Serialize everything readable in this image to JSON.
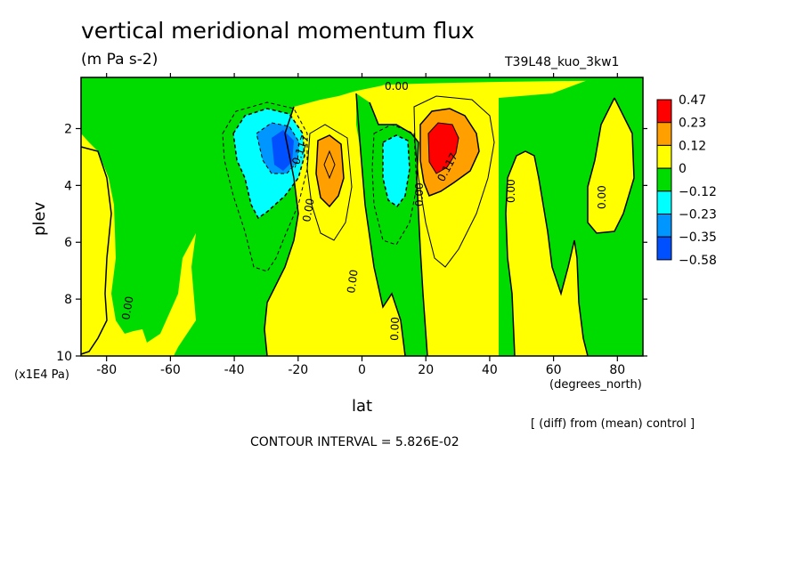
{
  "chart_data": {
    "type": "heatmap",
    "title": "vertical meridional momentum flux",
    "units": "(m Pa s-2)",
    "run_label": "T39L48_kuo_3kw1",
    "xlabel": "lat",
    "x_units": "(degrees_north)",
    "ylabel": "plev",
    "y_scale": "(x1E4 Pa)",
    "xlim": [
      -88,
      88
    ],
    "ylim": [
      10,
      0.2
    ],
    "x_ticks": [
      "-80",
      "-60",
      "-40",
      "-20",
      "0",
      "20",
      "40",
      "60",
      "80"
    ],
    "x_tick_values": [
      -80,
      -60,
      -40,
      -20,
      0,
      20,
      40,
      60,
      80
    ],
    "y_ticks": [
      "2",
      "4",
      "6",
      "8",
      "10"
    ],
    "y_tick_values": [
      2,
      4,
      6,
      8,
      10
    ],
    "colorbar": {
      "labels": [
        "0.47",
        "0.23",
        "0.12",
        "0",
        "−0.12",
        "−0.23",
        "−0.35",
        "−0.58"
      ],
      "colors": [
        "#ff0000",
        "#ffa000",
        "#ffff00",
        "#00dc00",
        "#00ffff",
        "#0096ff",
        "#0050ff"
      ]
    },
    "contour_labels": [
      "0.00",
      "0.117",
      "-0.117"
    ],
    "features": [
      {
        "lat": -25,
        "plev": 3,
        "value": -0.47
      },
      {
        "lat": 25,
        "plev": 2.8,
        "value": 0.47
      },
      {
        "lat": -11,
        "plev": 3.2,
        "value": 0.2
      },
      {
        "lat": 10,
        "plev": 3.6,
        "value": -0.2
      }
    ],
    "contour_interval": "CONTOUR INTERVAL = 5.826E-02",
    "note": "[ (diff) from (mean) control ]"
  },
  "colors": {
    "red": "#ff0000",
    "orange": "#ffa000",
    "yellow": "#ffff00",
    "green": "#00dc00",
    "cyan": "#00ffff",
    "blue": "#0096ff",
    "darkblue": "#0050ff"
  }
}
